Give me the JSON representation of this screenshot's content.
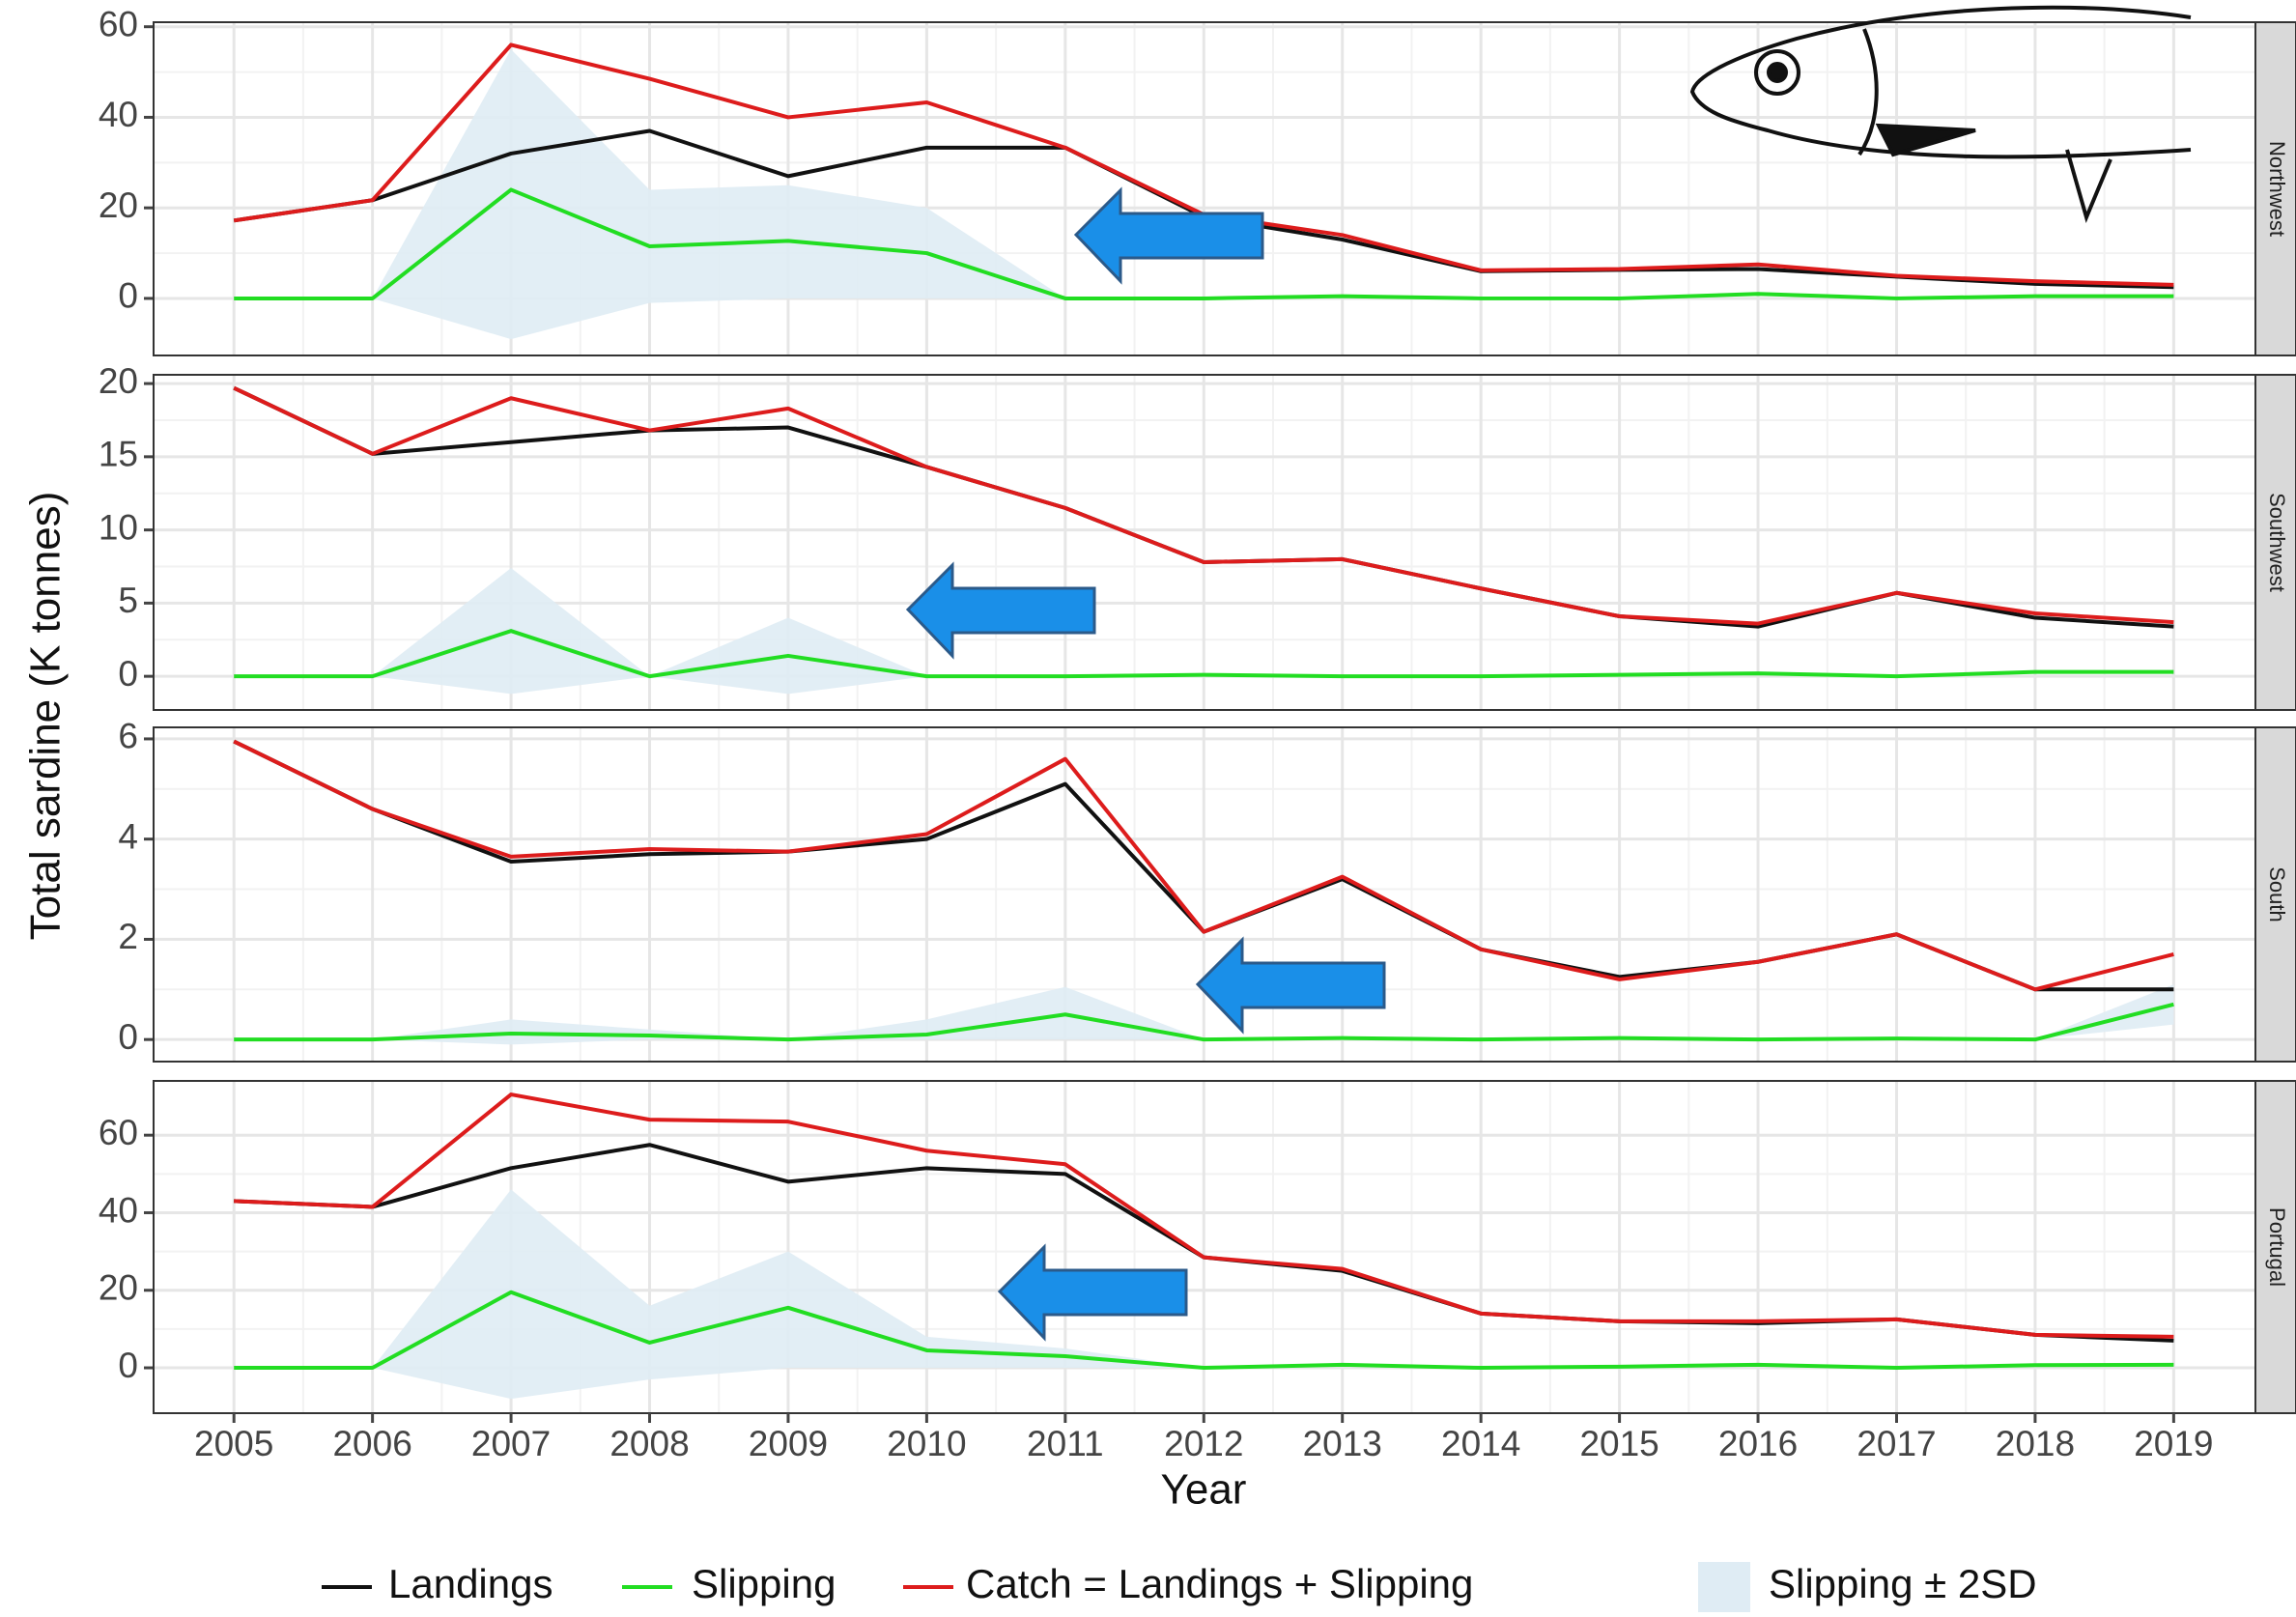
{
  "ylabel": "Total sardine (K tonnes)",
  "xlabel": "Year",
  "legend_position": "bottom",
  "chart_data": [
    {
      "type": "line",
      "title": "Northwest",
      "x": [
        2005,
        2006,
        2007,
        2008,
        2009,
        2010,
        2011,
        2012,
        2013,
        2014,
        2015,
        2016,
        2017,
        2018,
        2019
      ],
      "xlim": [
        2004.42,
        2019.59
      ],
      "ylim": [
        -12.6,
        61
      ],
      "yticks": [
        0,
        20,
        40,
        60
      ],
      "grid": true,
      "band": {
        "name": "Slipping ± 2SD",
        "color": "#dfecf4",
        "lower": [
          0,
          0,
          -9,
          -1,
          0,
          0,
          0,
          0,
          0.5,
          0,
          0,
          1,
          0,
          0.5,
          0.5
        ],
        "upper": [
          0,
          0,
          55,
          24,
          25,
          20,
          0,
          0,
          0.5,
          0,
          0,
          1,
          0,
          0.5,
          0.5
        ]
      },
      "series": [
        {
          "name": "Landings",
          "color": "#111111",
          "values": [
            17.2,
            21.7,
            32,
            37,
            27,
            33.3,
            33.3,
            18,
            13,
            6,
            6.3,
            6.5,
            4.8,
            3.2,
            2.5
          ]
        },
        {
          "name": "Slipping",
          "color": "#22dd22",
          "values": [
            0,
            0,
            24,
            11.5,
            12.7,
            10,
            0,
            0,
            0.5,
            0,
            0,
            1,
            0,
            0.5,
            0.5
          ]
        },
        {
          "name": "Catch = Landings + Slipping",
          "color": "#dd1c1c",
          "values": [
            17.2,
            21.7,
            56,
            48.5,
            40,
            43.3,
            33.3,
            18.5,
            14,
            6.2,
            6.5,
            7.5,
            5,
            3.8,
            3
          ]
        }
      ]
    },
    {
      "type": "line",
      "title": "Southwest",
      "x": [
        2005,
        2006,
        2007,
        2008,
        2009,
        2010,
        2011,
        2012,
        2013,
        2014,
        2015,
        2016,
        2017,
        2018,
        2019
      ],
      "xlim": [
        2004.42,
        2019.59
      ],
      "ylim": [
        -2.3,
        20.6
      ],
      "yticks": [
        0,
        5,
        10,
        15,
        20
      ],
      "grid": true,
      "band": {
        "color": "#dfecf4",
        "lower": [
          0,
          0,
          -1.2,
          0,
          -1.2,
          0,
          0,
          0.1,
          0,
          0,
          0.1,
          0.2,
          0,
          0.3,
          0.3
        ],
        "upper": [
          0,
          0,
          7.4,
          0,
          4,
          0,
          0,
          0.1,
          0,
          0,
          0.1,
          0.2,
          0,
          0.3,
          0.3
        ]
      },
      "series": [
        {
          "color": "#111111",
          "values": [
            19.7,
            15.2,
            16,
            16.8,
            17,
            14.3,
            11.5,
            7.8,
            8,
            6,
            4.1,
            3.4,
            5.7,
            4,
            3.4
          ]
        },
        {
          "color": "#22dd22",
          "values": [
            0,
            0,
            3.1,
            0,
            1.4,
            0,
            0,
            0.1,
            0,
            0,
            0.1,
            0.2,
            0,
            0.3,
            0.3
          ]
        },
        {
          "color": "#dd1c1c",
          "values": [
            19.7,
            15.2,
            19,
            16.8,
            18.3,
            14.3,
            11.5,
            7.8,
            8,
            6,
            4.1,
            3.6,
            5.7,
            4.3,
            3.7
          ]
        }
      ]
    },
    {
      "type": "line",
      "title": "South",
      "x": [
        2005,
        2006,
        2007,
        2008,
        2009,
        2010,
        2011,
        2012,
        2013,
        2014,
        2015,
        2016,
        2017,
        2018,
        2019
      ],
      "xlim": [
        2004.42,
        2019.59
      ],
      "ylim": [
        -0.44,
        6.23
      ],
      "yticks": [
        0,
        2,
        4,
        6
      ],
      "grid": true,
      "band": {
        "color": "#dfecf4",
        "lower": [
          0,
          0,
          -0.1,
          0,
          0,
          0,
          0,
          0,
          0.03,
          0,
          0.03,
          0,
          0.02,
          0,
          0.3
        ],
        "upper": [
          0,
          0,
          0.4,
          0.2,
          0,
          0.4,
          1.05,
          0,
          0.03,
          0,
          0.03,
          0,
          0.02,
          0,
          1.1
        ]
      },
      "series": [
        {
          "color": "#111111",
          "values": [
            5.95,
            4.6,
            3.55,
            3.7,
            3.75,
            4,
            5.1,
            2.15,
            3.2,
            1.8,
            1.25,
            1.55,
            2.1,
            1,
            1
          ]
        },
        {
          "color": "#22dd22",
          "values": [
            0,
            0,
            0.12,
            0.08,
            0,
            0.1,
            0.5,
            0,
            0.03,
            0,
            0.03,
            0,
            0.02,
            0,
            0.7
          ]
        },
        {
          "color": "#dd1c1c",
          "values": [
            5.95,
            4.6,
            3.65,
            3.8,
            3.75,
            4.1,
            5.6,
            2.15,
            3.25,
            1.8,
            1.2,
            1.55,
            2.1,
            1,
            1.7
          ]
        }
      ]
    },
    {
      "type": "line",
      "title": "Portugal",
      "x": [
        2005,
        2006,
        2007,
        2008,
        2009,
        2010,
        2011,
        2012,
        2013,
        2014,
        2015,
        2016,
        2017,
        2018,
        2019
      ],
      "xlim": [
        2004.42,
        2019.59
      ],
      "ylim": [
        -11.7,
        74
      ],
      "yticks": [
        0,
        20,
        40,
        60
      ],
      "xticks": [
        2005,
        2006,
        2007,
        2008,
        2009,
        2010,
        2011,
        2012,
        2013,
        2014,
        2015,
        2016,
        2017,
        2018,
        2019
      ],
      "grid": true,
      "band": {
        "color": "#dfecf4",
        "lower": [
          0,
          0,
          -8,
          -3,
          0,
          0,
          0,
          0,
          0.8,
          0,
          0.3,
          0.8,
          0,
          0.7,
          0.8
        ],
        "upper": [
          0,
          0,
          46,
          16,
          30,
          8,
          5,
          0,
          0.8,
          0,
          0.3,
          0.8,
          0,
          0.7,
          0.8
        ]
      },
      "series": [
        {
          "color": "#111111",
          "values": [
            43,
            41.5,
            51.5,
            57.5,
            48,
            51.5,
            50,
            28.5,
            25,
            14,
            12,
            11.5,
            12.5,
            8.5,
            7
          ]
        },
        {
          "color": "#22dd22",
          "values": [
            0,
            0,
            19.5,
            6.5,
            15.5,
            4.5,
            3,
            0,
            0.8,
            0,
            0.3,
            0.8,
            0,
            0.7,
            0.8
          ]
        },
        {
          "color": "#dd1c1c",
          "values": [
            43,
            41.5,
            70.5,
            64,
            63.5,
            56,
            52.5,
            28.5,
            25.5,
            14,
            12,
            12,
            12.5,
            8.5,
            8
          ]
        }
      ]
    }
  ]
}
